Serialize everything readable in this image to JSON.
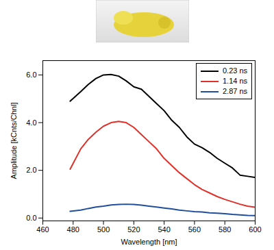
{
  "chart_data": {
    "type": "line",
    "x_label": "Wavelength [nm]",
    "y_label": "Amplitude [kCnts/Chnl]",
    "x": [
      478,
      485,
      490,
      495,
      500,
      505,
      510,
      515,
      520,
      525,
      530,
      535,
      540,
      545,
      550,
      555,
      560,
      565,
      570,
      575,
      580,
      585,
      590,
      595,
      600
    ],
    "series": [
      {
        "name": "0.23 ns",
        "color": "#000000",
        "values": [
          4.9,
          5.3,
          5.6,
          5.85,
          6.0,
          6.02,
          5.95,
          5.75,
          5.5,
          5.4,
          5.1,
          4.8,
          4.5,
          4.1,
          3.8,
          3.4,
          3.1,
          2.95,
          2.75,
          2.5,
          2.3,
          2.1,
          1.8,
          1.75,
          1.7
        ]
      },
      {
        "name": "1.14 ns",
        "color": "#e0302a",
        "values": [
          2.05,
          2.9,
          3.3,
          3.6,
          3.85,
          4.0,
          4.05,
          4.0,
          3.8,
          3.5,
          3.2,
          2.9,
          2.5,
          2.2,
          1.9,
          1.65,
          1.4,
          1.2,
          1.05,
          0.9,
          0.78,
          0.68,
          0.58,
          0.5,
          0.45
        ]
      },
      {
        "name": "2.87 ns",
        "color": "#1f4e9c",
        "values": [
          0.28,
          0.33,
          0.4,
          0.46,
          0.5,
          0.55,
          0.57,
          0.58,
          0.57,
          0.54,
          0.5,
          0.46,
          0.42,
          0.38,
          0.33,
          0.3,
          0.27,
          0.25,
          0.22,
          0.2,
          0.18,
          0.15,
          0.13,
          0.11,
          0.1
        ]
      }
    ],
    "xlim": [
      460,
      600
    ],
    "xticks": [
      460,
      480,
      500,
      520,
      540,
      560,
      580,
      600
    ],
    "ylim": [
      -0.12,
      6.6
    ],
    "yticks": [
      {
        "value": 0,
        "label": "0.0"
      },
      {
        "value": 2,
        "label": "2.0"
      },
      {
        "value": 4,
        "label": "4.0"
      },
      {
        "value": 6,
        "label": "6.0"
      }
    ],
    "grid": false,
    "legend": "top-right"
  }
}
